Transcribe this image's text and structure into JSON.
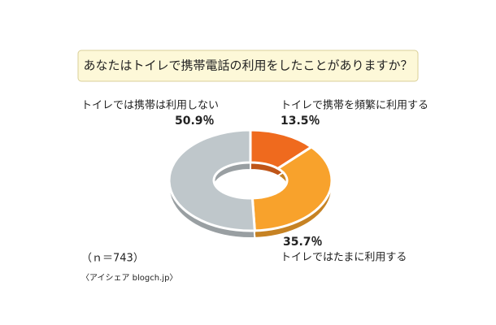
{
  "chart_data": {
    "type": "pie",
    "title": "あなたはトイレで携帯電話の利用をしたことがありますか？",
    "categories": [
      "トイレで携帯を頻繁に利用する",
      "トイレではたまに利用する",
      "トイレでは携帯は利用しない"
    ],
    "values": [
      13.5,
      35.7,
      50.9
    ],
    "value_labels": [
      "13.5％",
      "35.7％",
      "50.9％"
    ],
    "colors": [
      "#ef6a1e",
      "#f8a22c",
      "#bfc7cb"
    ],
    "note": "（ｎ＝743）",
    "source": "〈アイシェア blogch.jp〉"
  }
}
